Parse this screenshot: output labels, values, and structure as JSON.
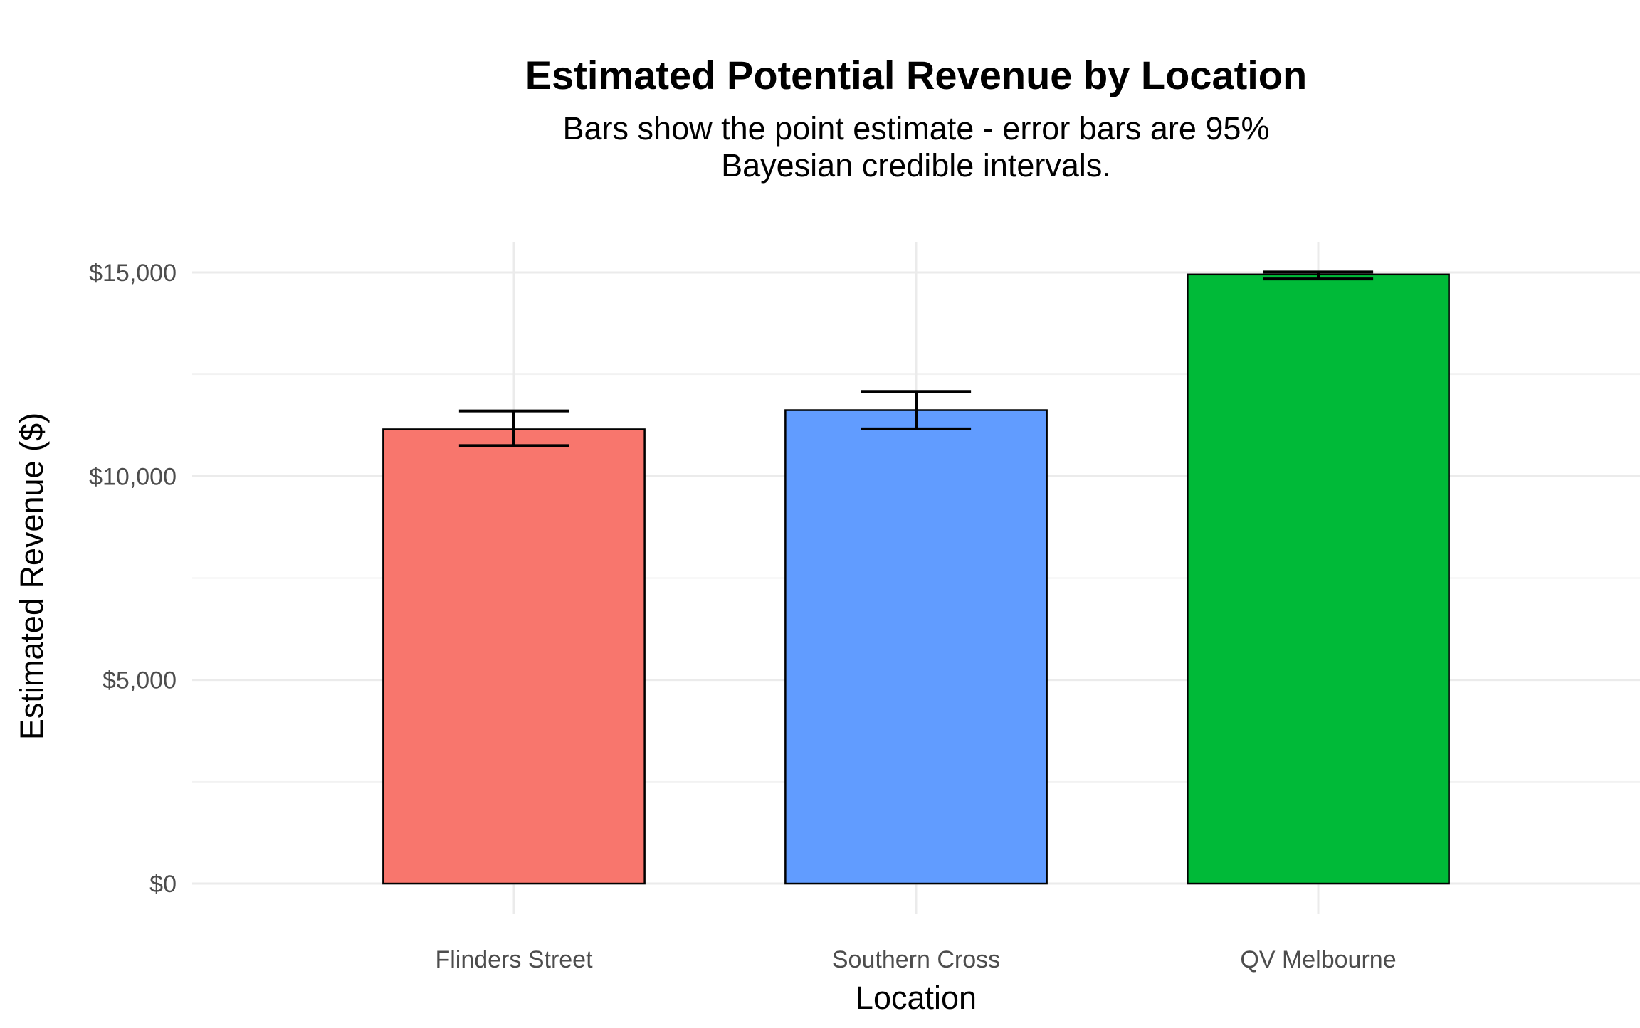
{
  "chart_data": {
    "type": "bar",
    "title": "Estimated Potential Revenue by Location",
    "subtitle_lines": [
      "Bars show the point estimate - error bars are 95%",
      "Bayesian credible intervals."
    ],
    "xlabel": "Location",
    "ylabel": "Estimated Revenue ($)",
    "categories": [
      "Flinders Street",
      "Southern Cross",
      "QV Melbourne"
    ],
    "values": [
      11150,
      11620,
      14950
    ],
    "error_low": [
      10750,
      11160,
      14840
    ],
    "error_high": [
      11600,
      12080,
      15010
    ],
    "colors": [
      "#F8766D",
      "#619CFF",
      "#00BA38"
    ],
    "ylim": [
      -750,
      15750
    ],
    "yticks": [
      0,
      5000,
      10000,
      15000
    ],
    "ytick_labels": [
      "$0",
      "$5,000",
      "$10,000",
      "$15,000"
    ],
    "grid": true,
    "legend": "none"
  }
}
